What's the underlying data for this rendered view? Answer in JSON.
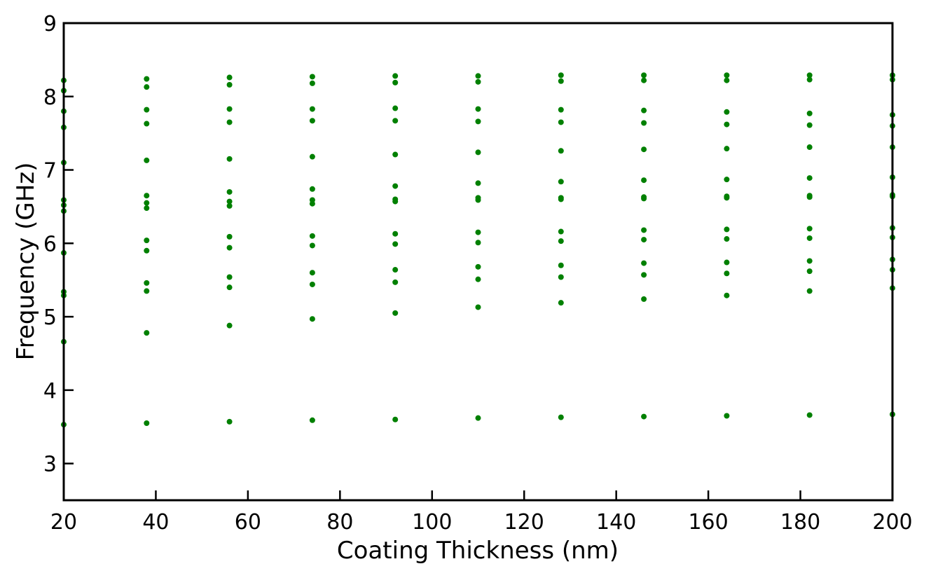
{
  "chart_data": {
    "type": "scatter",
    "title": "",
    "xlabel": "Coating Thickness (nm)",
    "ylabel": "Frequency (GHz)",
    "xlim": [
      20,
      200
    ],
    "ylim": [
      2.5,
      9
    ],
    "xticks": [
      20,
      40,
      60,
      80,
      100,
      120,
      140,
      160,
      180,
      200
    ],
    "yticks": [
      3,
      4,
      5,
      6,
      7,
      8,
      9
    ],
    "grid": false,
    "legend": "none",
    "marker_color": "#008000",
    "series": [
      {
        "x": [
          20,
          38,
          56,
          74,
          92,
          110,
          128,
          146,
          164,
          182,
          200
        ],
        "groups": [
          [
            3.53,
            4.66,
            5.29,
            5.34,
            5.87,
            6.44,
            6.52,
            6.59,
            7.1,
            7.58,
            7.8,
            8.08,
            8.22
          ],
          [
            3.55,
            4.78,
            5.35,
            5.46,
            5.9,
            6.04,
            6.48,
            6.55,
            6.65,
            7.13,
            7.63,
            7.82,
            8.13,
            8.24
          ],
          [
            3.57,
            4.88,
            5.4,
            5.54,
            5.94,
            6.09,
            6.51,
            6.57,
            6.7,
            7.15,
            7.65,
            7.83,
            8.16,
            8.26
          ],
          [
            3.59,
            4.97,
            5.44,
            5.6,
            5.97,
            6.1,
            6.54,
            6.59,
            6.74,
            7.18,
            7.67,
            7.83,
            8.18,
            8.27
          ],
          [
            3.6,
            5.05,
            5.47,
            5.64,
            5.99,
            6.13,
            6.57,
            6.6,
            6.78,
            7.21,
            7.67,
            7.84,
            8.19,
            8.28
          ],
          [
            3.62,
            5.13,
            5.51,
            5.68,
            6.01,
            6.15,
            6.59,
            6.62,
            6.82,
            7.24,
            7.66,
            7.83,
            8.2,
            8.28
          ],
          [
            3.63,
            5.19,
            5.54,
            5.7,
            6.03,
            6.16,
            6.6,
            6.62,
            6.84,
            7.26,
            7.65,
            7.82,
            8.21,
            8.29
          ],
          [
            3.64,
            5.24,
            5.57,
            5.73,
            6.05,
            6.18,
            6.61,
            6.63,
            6.86,
            7.28,
            7.64,
            7.81,
            8.22,
            8.29
          ],
          [
            3.65,
            5.29,
            5.59,
            5.74,
            6.06,
            6.19,
            6.62,
            6.64,
            6.87,
            7.29,
            7.62,
            7.79,
            8.22,
            8.29
          ],
          [
            3.66,
            5.35,
            5.62,
            5.76,
            6.07,
            6.2,
            6.63,
            6.65,
            6.89,
            7.31,
            7.61,
            7.77,
            8.23,
            8.29
          ],
          [
            3.67,
            5.39,
            5.64,
            5.78,
            6.08,
            6.21,
            6.64,
            6.66,
            6.9,
            7.31,
            7.6,
            7.75,
            8.23,
            8.29
          ]
        ]
      }
    ]
  }
}
